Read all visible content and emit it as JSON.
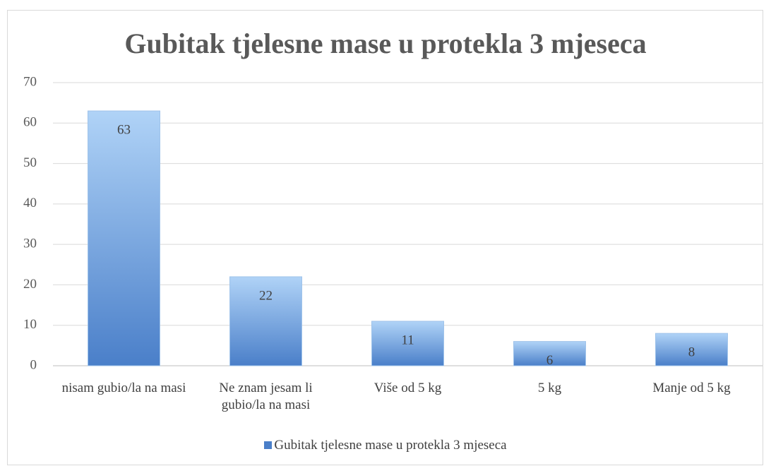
{
  "chart_data": {
    "type": "bar",
    "title": "Gubitak tjelesne mase u protekla 3 mjeseca",
    "categories": [
      "nisam gubio/la na masi",
      "Ne znam jesam li gubio/la na masi",
      "Više od 5 kg",
      "5 kg",
      "Manje od 5 kg"
    ],
    "series": [
      {
        "name": "Gubitak tjelesne mase u protekla 3 mjeseca",
        "color": "#4a7fc9",
        "values": [
          63,
          22,
          11,
          6,
          8
        ]
      }
    ],
    "ylim": [
      0,
      70
    ],
    "yticks": [
      0,
      10,
      20,
      30,
      40,
      50,
      60,
      70
    ],
    "grid": true,
    "legend": "bottom"
  }
}
